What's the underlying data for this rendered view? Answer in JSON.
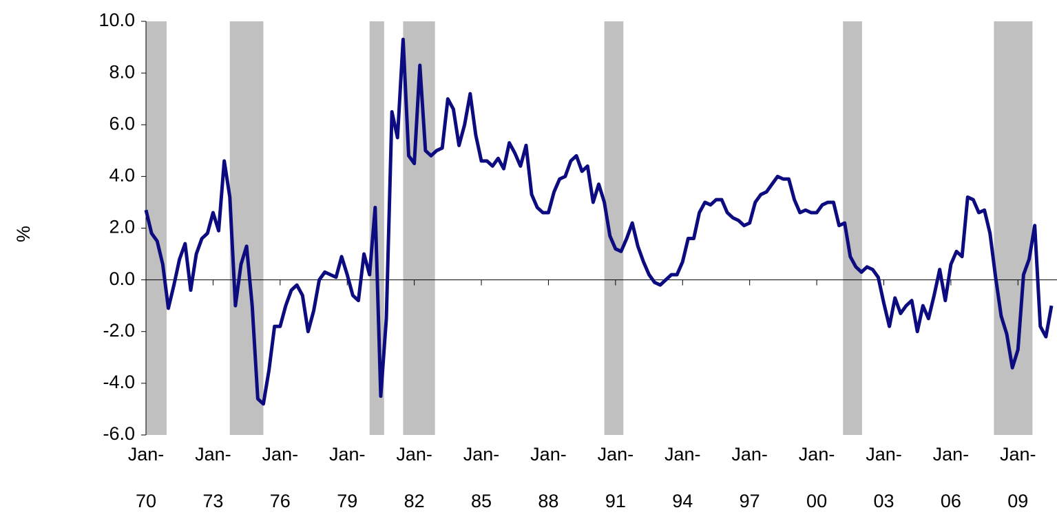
{
  "chart_data": {
    "type": "line",
    "y_label": "%",
    "categories": [
      "Jan-70",
      null,
      null,
      null,
      null,
      null,
      null,
      null,
      null,
      null,
      null,
      null,
      "Jan-73",
      null,
      null,
      null,
      null,
      null,
      null,
      null,
      null,
      null,
      null,
      null,
      "Jan-76",
      null,
      null,
      null,
      null,
      null,
      null,
      null,
      null,
      null,
      null,
      null,
      "Jan-79",
      null,
      null,
      null,
      null,
      null,
      null,
      null,
      null,
      null,
      null,
      null,
      "Jan-82",
      null,
      null,
      null,
      null,
      null,
      null,
      null,
      null,
      null,
      null,
      null,
      "Jan-85",
      null,
      null,
      null,
      null,
      null,
      null,
      null,
      null,
      null,
      null,
      null,
      "Jan-88",
      null,
      null,
      null,
      null,
      null,
      null,
      null,
      null,
      null,
      null,
      null,
      "Jan-91",
      null,
      null,
      null,
      null,
      null,
      null,
      null,
      null,
      null,
      null,
      null,
      "Jan-94",
      null,
      null,
      null,
      null,
      null,
      null,
      null,
      null,
      null,
      null,
      null,
      "Jan-97",
      null,
      null,
      null,
      null,
      null,
      null,
      null,
      null,
      null,
      null,
      null,
      "Jan-00",
      null,
      null,
      null,
      null,
      null,
      null,
      null,
      null,
      null,
      null,
      null,
      "Jan-03",
      null,
      null,
      null,
      null,
      null,
      null,
      null,
      null,
      null,
      null,
      null,
      "Jan-06",
      null,
      null,
      null,
      null,
      null,
      null,
      null,
      null,
      null,
      null,
      null,
      "Jan-09",
      null,
      null,
      null,
      null,
      null,
      null
    ],
    "values": [
      2.7,
      1.8,
      1.5,
      0.6,
      -1.1,
      -0.2,
      0.8,
      1.4,
      -0.4,
      1.0,
      1.6,
      1.8,
      2.6,
      1.9,
      4.6,
      3.2,
      -1.0,
      0.6,
      1.3,
      -1.0,
      -4.6,
      -4.8,
      -3.5,
      -1.8,
      -1.8,
      -1.0,
      -0.4,
      -0.2,
      -0.6,
      -2.0,
      -1.2,
      0.0,
      0.3,
      0.2,
      0.1,
      0.9,
      0.2,
      -0.6,
      -0.8,
      1.0,
      0.2,
      2.8,
      -4.5,
      -1.5,
      6.5,
      5.5,
      9.3,
      4.8,
      4.5,
      8.3,
      5.0,
      4.8,
      5.0,
      5.1,
      7.0,
      6.6,
      5.2,
      6.0,
      7.2,
      5.6,
      4.6,
      4.6,
      4.4,
      4.7,
      4.3,
      5.3,
      4.9,
      4.4,
      5.2,
      3.3,
      2.8,
      2.6,
      2.6,
      3.4,
      3.9,
      4.0,
      4.6,
      4.8,
      4.2,
      4.4,
      3.0,
      3.7,
      3.0,
      1.7,
      1.2,
      1.1,
      1.6,
      2.2,
      1.3,
      0.7,
      0.2,
      -0.1,
      -0.2,
      0.0,
      0.2,
      0.2,
      0.7,
      1.6,
      1.6,
      2.6,
      3.0,
      2.9,
      3.1,
      3.1,
      2.6,
      2.4,
      2.3,
      2.1,
      2.2,
      3.0,
      3.3,
      3.4,
      3.7,
      4.0,
      3.9,
      3.9,
      3.1,
      2.6,
      2.7,
      2.6,
      2.6,
      2.9,
      3.0,
      3.0,
      2.1,
      2.2,
      0.9,
      0.5,
      0.3,
      0.5,
      0.4,
      0.1,
      -0.9,
      -1.8,
      -0.7,
      -1.3,
      -1.0,
      -0.8,
      -2.0,
      -1.0,
      -1.5,
      -0.6,
      0.4,
      -0.8,
      0.6,
      1.1,
      0.9,
      3.2,
      3.1,
      2.6,
      2.7,
      1.8,
      0.1,
      -1.4,
      -2.1,
      -3.4,
      -2.7,
      0.2,
      0.8,
      2.1,
      -1.8,
      -2.2,
      -1.0
    ],
    "color": "#0c0c80",
    "shading": [
      [
        0,
        3.7
      ],
      [
        15,
        21
      ],
      [
        40,
        42.6
      ],
      [
        46,
        51.7
      ],
      [
        82,
        85.4
      ],
      [
        124.7,
        128.1
      ],
      [
        151.7,
        158.6
      ]
    ],
    "shading_color": "#c0c0c0",
    "ylim": [
      -6,
      10
    ],
    "yticks": [
      {
        "value": -6,
        "label": "-6.0"
      },
      {
        "value": -4,
        "label": "-4.0"
      },
      {
        "value": -2,
        "label": "-2.0"
      },
      {
        "value": 0,
        "label": "0.0"
      },
      {
        "value": 2,
        "label": "2.0"
      },
      {
        "value": 4,
        "label": "4.0"
      },
      {
        "value": 6,
        "label": "6.0"
      },
      {
        "value": 8,
        "label": "8.0"
      },
      {
        "value": 10,
        "label": "10.0"
      }
    ],
    "grid": false
  }
}
